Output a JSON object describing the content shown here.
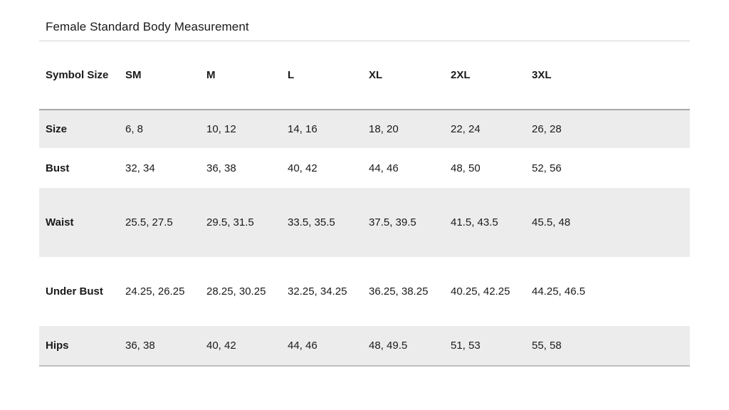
{
  "title": "Female Standard Body Measurement",
  "table": {
    "columns": [
      "Symbol Size",
      "SM",
      "M",
      "L",
      "XL",
      "2XL",
      "3XL"
    ],
    "rows": [
      {
        "label": "Size",
        "values": [
          "6, 8",
          "10, 12",
          "14, 16",
          "18, 20",
          "22, 24",
          "26, 28"
        ]
      },
      {
        "label": "Bust",
        "values": [
          "32, 34",
          "36, 38",
          "40, 42",
          "44, 46",
          "48, 50",
          "52, 56"
        ]
      },
      {
        "label": "Waist",
        "values": [
          "25.5, 27.5",
          "29.5, 31.5",
          "33.5, 35.5",
          "37.5, 39.5",
          "41.5, 43.5",
          "45.5, 48"
        ]
      },
      {
        "label": "Under Bust",
        "values": [
          "24.25, 26.25",
          "28.25, 30.25",
          "32.25, 34.25",
          "36.25, 38.25",
          "40.25, 42.25",
          "44.25, 46.5"
        ]
      },
      {
        "label": "Hips",
        "values": [
          "36, 38",
          "40, 42",
          "44, 46",
          "48, 49.5",
          "51, 53",
          "55, 58"
        ]
      }
    ]
  },
  "colors": {
    "stripe": "#ececec",
    "header_rule": "#a8a8a8",
    "title_rule": "#d6d6d6",
    "bottom_rule": "#bfbfbf",
    "text": "#1a1a1a"
  }
}
